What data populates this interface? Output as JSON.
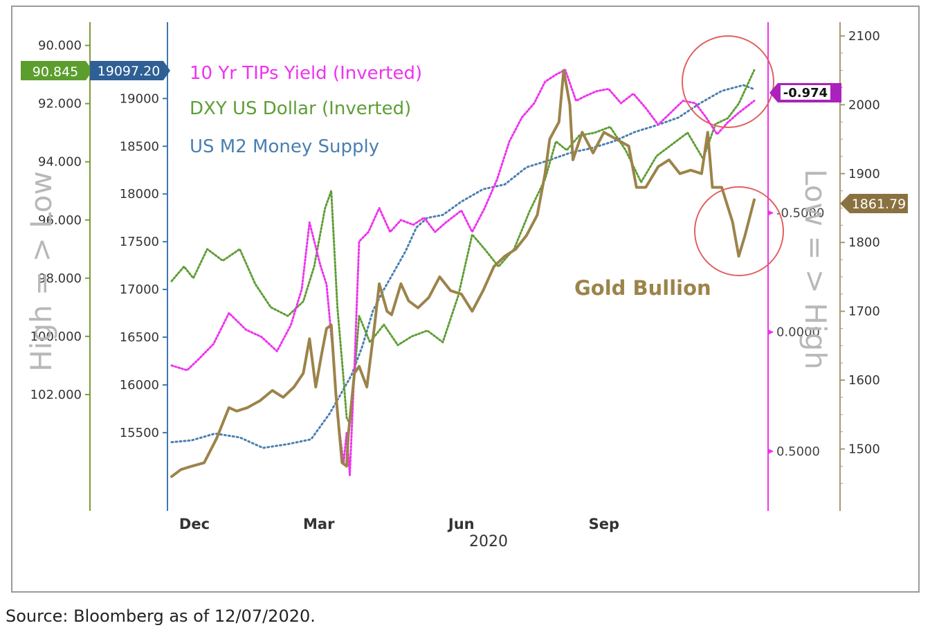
{
  "source_note": "Source: Bloomberg as of 12/07/2020.",
  "colors": {
    "gold": "#9c834a",
    "dxy": "#5f9e36",
    "tips": "#ee33ee",
    "m2": "#4a7fb0",
    "dxy_axis": "#7a9a38",
    "m2_axis": "#3f78b0",
    "tips_axis": "#ee33ee",
    "gold_axis": "#a89870",
    "circle": "#e06060"
  },
  "chart_data": {
    "type": "line",
    "xlabel": "2020",
    "x_ticks": [
      "Dec",
      "Mar",
      "Jun",
      "Sep"
    ],
    "x_range": [
      "2019-11-27",
      "2020-12-07"
    ],
    "side_text": {
      "left": "High = > Low",
      "right": "Low = > High"
    },
    "annotation": "Gold Bullion",
    "legend": [
      "10 Yr TIPs Yield (Inverted)",
      "DXY US Dollar (Inverted)",
      "US M2 Money Supply"
    ],
    "axes": {
      "dxy": {
        "position": "left-outer",
        "inverted": true,
        "range": [
          89.2,
          106.0
        ],
        "ticks": [
          "90.000",
          "92.000",
          "94.000",
          "96.000",
          "98.000",
          "100.000",
          "102.000"
        ],
        "last_value": "90.845"
      },
      "m2": {
        "position": "left-inner",
        "range": [
          14680,
          19800
        ],
        "ticks": [
          "15500",
          "16000",
          "16500",
          "17000",
          "17500",
          "18000",
          "18500",
          "19000"
        ],
        "last_value": "19097.20"
      },
      "tips": {
        "position": "right-inner",
        "inverted": true,
        "range": [
          -1.3,
          0.75
        ],
        "ticks": [
          "-0.5000",
          "0.0000",
          "0.5000"
        ],
        "last_value": "-0.974"
      },
      "gold": {
        "position": "right-outer",
        "range": [
          1410,
          2120
        ],
        "ticks": [
          "1500",
          "1600",
          "1700",
          "1800",
          "1900",
          "2000",
          "2100"
        ],
        "last_value": "1861.79"
      }
    },
    "series": [
      {
        "name": "10 Yr TIPs Yield (Inverted)",
        "axis": "tips",
        "style": "dotted",
        "x": [
          "2019-11-27",
          "2019-12-07",
          "2019-12-15",
          "2019-12-24",
          "2020-01-03",
          "2020-01-14",
          "2020-01-24",
          "2020-02-03",
          "2020-02-12",
          "2020-02-19",
          "2020-02-24",
          "2020-03-02",
          "2020-03-06",
          "2020-03-10",
          "2020-03-13",
          "2020-03-17",
          "2020-03-19",
          "2020-03-21",
          "2020-03-24",
          "2020-03-27",
          "2020-04-02",
          "2020-04-09",
          "2020-04-16",
          "2020-04-23",
          "2020-05-01",
          "2020-05-08",
          "2020-05-15",
          "2020-05-22",
          "2020-06-01",
          "2020-06-08",
          "2020-06-16",
          "2020-06-24",
          "2020-07-02",
          "2020-07-10",
          "2020-07-18",
          "2020-07-25",
          "2020-08-01",
          "2020-08-07",
          "2020-08-14",
          "2020-08-20",
          "2020-08-27",
          "2020-09-04",
          "2020-09-12",
          "2020-09-20",
          "2020-09-28",
          "2020-10-06",
          "2020-10-14",
          "2020-10-22",
          "2020-10-30",
          "2020-11-06",
          "2020-11-13",
          "2020-11-20",
          "2020-11-27",
          "2020-12-07"
        ],
        "y": [
          0.14,
          0.16,
          0.11,
          0.05,
          -0.08,
          -0.01,
          0.02,
          0.08,
          -0.03,
          -0.18,
          -0.46,
          -0.28,
          -0.2,
          0.08,
          0.35,
          0.55,
          0.42,
          0.6,
          0.15,
          -0.38,
          -0.42,
          -0.52,
          -0.42,
          -0.47,
          -0.45,
          -0.48,
          -0.42,
          -0.46,
          -0.51,
          -0.42,
          -0.52,
          -0.64,
          -0.8,
          -0.9,
          -0.96,
          -1.05,
          -1.08,
          -1.1,
          -0.97,
          -0.99,
          -1.01,
          -1.02,
          -0.96,
          -1.0,
          -0.94,
          -0.87,
          -0.92,
          -0.97,
          -0.96,
          -0.9,
          -0.83,
          -0.88,
          -0.92,
          -0.97
        ]
      },
      {
        "name": "DXY US Dollar (Inverted)",
        "axis": "dxy",
        "style": "dotted",
        "x": [
          "2019-11-27",
          "2019-12-05",
          "2019-12-11",
          "2019-12-20",
          "2019-12-30",
          "2020-01-10",
          "2020-01-20",
          "2020-01-30",
          "2020-02-10",
          "2020-02-20",
          "2020-02-27",
          "2020-03-05",
          "2020-03-09",
          "2020-03-13",
          "2020-03-17",
          "2020-03-19",
          "2020-03-21",
          "2020-03-24",
          "2020-03-27",
          "2020-04-03",
          "2020-04-12",
          "2020-04-21",
          "2020-04-30",
          "2020-05-10",
          "2020-05-20",
          "2020-05-30",
          "2020-06-08",
          "2020-06-16",
          "2020-06-25",
          "2020-07-05",
          "2020-07-15",
          "2020-07-25",
          "2020-08-01",
          "2020-08-08",
          "2020-08-16",
          "2020-08-26",
          "2020-09-05",
          "2020-09-15",
          "2020-09-25",
          "2020-10-05",
          "2020-10-15",
          "2020-10-25",
          "2020-11-04",
          "2020-11-12",
          "2020-11-20",
          "2020-11-27",
          "2020-12-07"
        ],
        "y": [
          98.1,
          97.6,
          98.0,
          97.0,
          97.4,
          97.0,
          98.2,
          99.0,
          99.3,
          98.8,
          97.6,
          95.6,
          95.0,
          99.0,
          101.5,
          102.8,
          103.0,
          101.4,
          99.3,
          100.2,
          99.6,
          100.3,
          100.0,
          99.8,
          100.2,
          98.6,
          96.5,
          97.0,
          97.6,
          97.0,
          95.7,
          94.6,
          93.3,
          93.6,
          93.1,
          93.0,
          92.8,
          93.6,
          94.7,
          93.8,
          93.4,
          93.0,
          93.9,
          92.7,
          92.5,
          92.0,
          90.85
        ]
      },
      {
        "name": "US M2 Money Supply",
        "axis": "m2",
        "style": "dotted",
        "x": [
          "2019-11-27",
          "2019-12-10",
          "2019-12-25",
          "2020-01-10",
          "2020-01-25",
          "2020-02-10",
          "2020-02-25",
          "2020-03-08",
          "2020-03-15",
          "2020-03-22",
          "2020-03-29",
          "2020-04-05",
          "2020-04-12",
          "2020-04-19",
          "2020-04-26",
          "2020-05-03",
          "2020-05-10",
          "2020-05-20",
          "2020-06-01",
          "2020-06-15",
          "2020-06-29",
          "2020-07-13",
          "2020-07-27",
          "2020-08-10",
          "2020-08-24",
          "2020-09-07",
          "2020-09-21",
          "2020-10-05",
          "2020-10-19",
          "2020-11-02",
          "2020-11-16",
          "2020-11-30",
          "2020-12-07"
        ],
        "y": [
          15400,
          15420,
          15490,
          15450,
          15340,
          15380,
          15430,
          15700,
          15900,
          16100,
          16400,
          16780,
          17000,
          17200,
          17400,
          17650,
          17750,
          17780,
          17920,
          18050,
          18100,
          18280,
          18350,
          18430,
          18480,
          18550,
          18650,
          18720,
          18800,
          18950,
          19080,
          19140,
          19097
        ]
      },
      {
        "name": "Gold Bullion",
        "axis": "gold",
        "style": "solid",
        "x": [
          "2019-11-27",
          "2019-12-03",
          "2019-12-10",
          "2019-12-18",
          "2019-12-26",
          "2020-01-03",
          "2020-01-08",
          "2020-01-15",
          "2020-01-23",
          "2020-01-31",
          "2020-02-07",
          "2020-02-14",
          "2020-02-20",
          "2020-02-24",
          "2020-02-28",
          "2020-03-03",
          "2020-03-06",
          "2020-03-09",
          "2020-03-12",
          "2020-03-16",
          "2020-03-19",
          "2020-03-20",
          "2020-03-24",
          "2020-03-27",
          "2020-04-01",
          "2020-04-06",
          "2020-04-09",
          "2020-04-14",
          "2020-04-17",
          "2020-04-23",
          "2020-04-28",
          "2020-05-04",
          "2020-05-11",
          "2020-05-18",
          "2020-05-25",
          "2020-06-01",
          "2020-06-08",
          "2020-06-15",
          "2020-06-22",
          "2020-06-29",
          "2020-07-06",
          "2020-07-13",
          "2020-07-20",
          "2020-07-25",
          "2020-07-28",
          "2020-08-03",
          "2020-08-06",
          "2020-08-10",
          "2020-08-12",
          "2020-08-18",
          "2020-08-25",
          "2020-09-01",
          "2020-09-09",
          "2020-09-17",
          "2020-09-22",
          "2020-09-28",
          "2020-10-06",
          "2020-10-13",
          "2020-10-20",
          "2020-10-27",
          "2020-11-03",
          "2020-11-07",
          "2020-11-10",
          "2020-11-16",
          "2020-11-23",
          "2020-11-27",
          "2020-12-01",
          "2020-12-07"
        ],
        "y": [
          1460,
          1470,
          1475,
          1480,
          1515,
          1560,
          1555,
          1560,
          1570,
          1585,
          1575,
          1590,
          1610,
          1660,
          1590,
          1640,
          1675,
          1680,
          1580,
          1480,
          1475,
          1520,
          1610,
          1620,
          1590,
          1680,
          1740,
          1700,
          1695,
          1740,
          1715,
          1705,
          1720,
          1750,
          1730,
          1725,
          1700,
          1730,
          1765,
          1780,
          1790,
          1810,
          1840,
          1900,
          1950,
          1975,
          2050,
          2000,
          1920,
          1960,
          1930,
          1960,
          1950,
          1940,
          1880,
          1880,
          1910,
          1920,
          1900,
          1905,
          1900,
          1960,
          1880,
          1880,
          1830,
          1780,
          1810,
          1862
        ]
      }
    ]
  }
}
